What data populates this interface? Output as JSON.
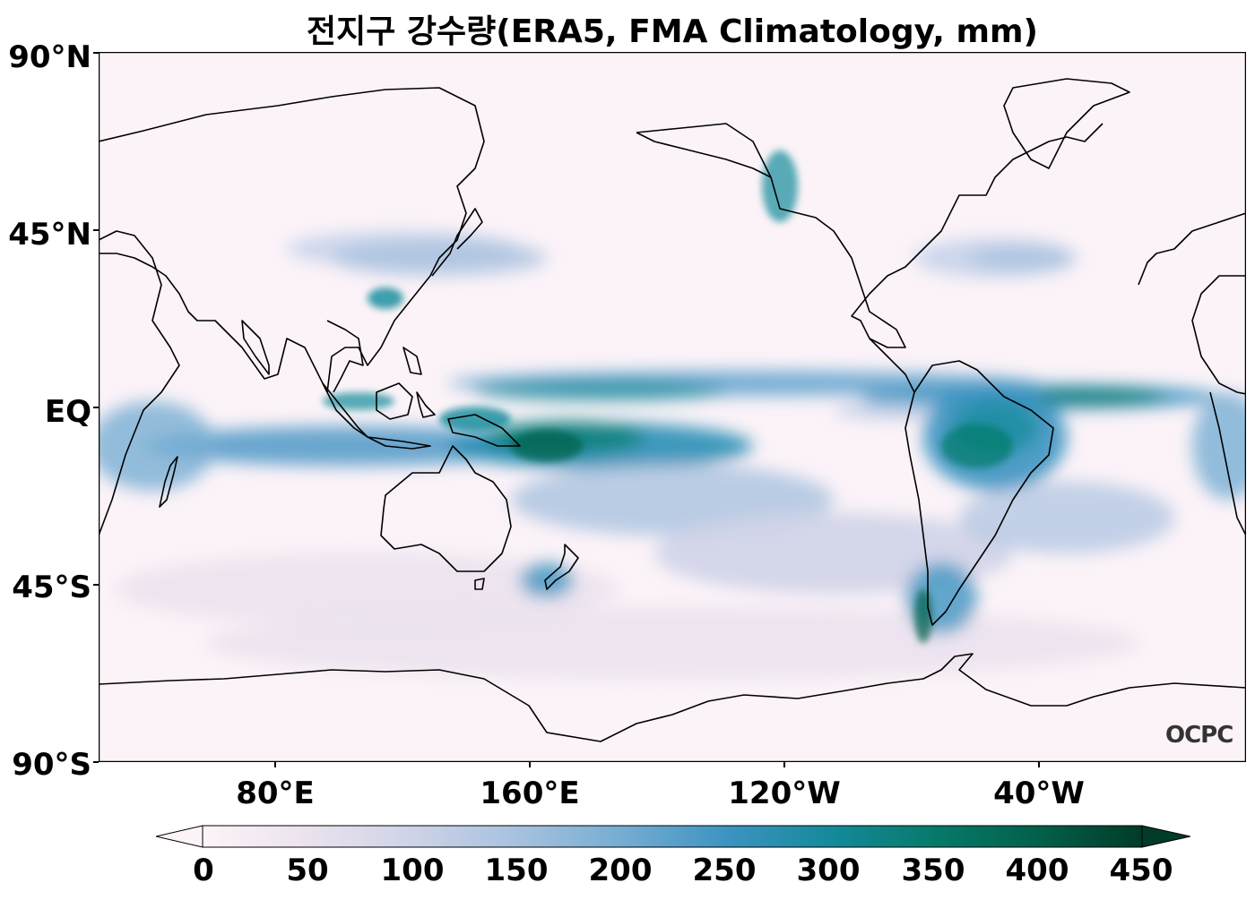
{
  "title": "전지구 강수량(ERA5, FMA Climatology, mm)",
  "logo": "OCPC",
  "lat_labels": [
    "90°N",
    "45°N",
    "EQ",
    "45°S",
    "90°S"
  ],
  "lon_labels": [
    "80°E",
    "160°E",
    "120°W",
    "40°W"
  ],
  "colorbar": {
    "ticks": [
      "0",
      "50",
      "100",
      "150",
      "200",
      "250",
      "300",
      "350",
      "400",
      "450"
    ],
    "colors": [
      "#fcf4f8",
      "#ebe2ee",
      "#cfd3e8",
      "#a9c2df",
      "#78aed3",
      "#3c93c1",
      "#148a9a",
      "#067a6a",
      "#02604a",
      "#013b2a"
    ]
  }
}
